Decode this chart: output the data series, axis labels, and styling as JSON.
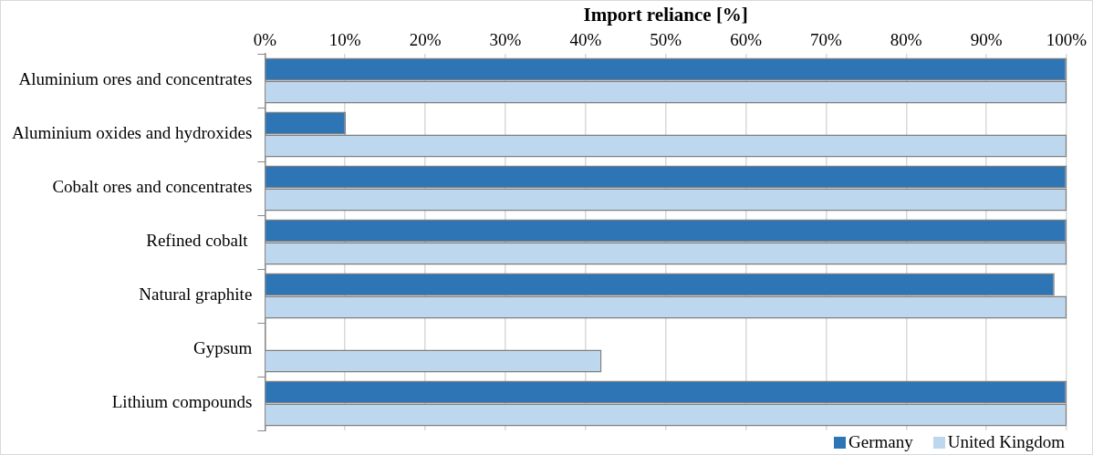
{
  "chart_data": {
    "type": "bar",
    "orientation": "horizontal",
    "xlabel": "Import reliance [%]",
    "categories": [
      "Aluminium ores and concentrates",
      "Aluminium oxides and hydroxides",
      "Cobalt ores and concentrates",
      "Refined cobalt ",
      "Natural graphite",
      "Gypsum",
      "Lithium compounds"
    ],
    "series": [
      {
        "name": "Germany",
        "color": "#2e75b6",
        "values": [
          100,
          10.1,
          100,
          100,
          98.5,
          null,
          100
        ]
      },
      {
        "name": "United Kingdom",
        "color": "#bdd7ee",
        "values": [
          100,
          100,
          100,
          100,
          100,
          42,
          100
        ]
      }
    ],
    "xlim": [
      0,
      100
    ],
    "xticks": [
      {
        "value": 0,
        "label": "0%"
      },
      {
        "value": 10,
        "label": "10%"
      },
      {
        "value": 20,
        "label": "20%"
      },
      {
        "value": 30,
        "label": "30%"
      },
      {
        "value": 40,
        "label": "40%"
      },
      {
        "value": 50,
        "label": "50%"
      },
      {
        "value": 60,
        "label": "60%"
      },
      {
        "value": 70,
        "label": "70%"
      },
      {
        "value": 80,
        "label": "80%"
      },
      {
        "value": 90,
        "label": "90%"
      },
      {
        "value": 100,
        "label": "100%"
      }
    ],
    "grid": "x",
    "legend": "bottom right"
  }
}
